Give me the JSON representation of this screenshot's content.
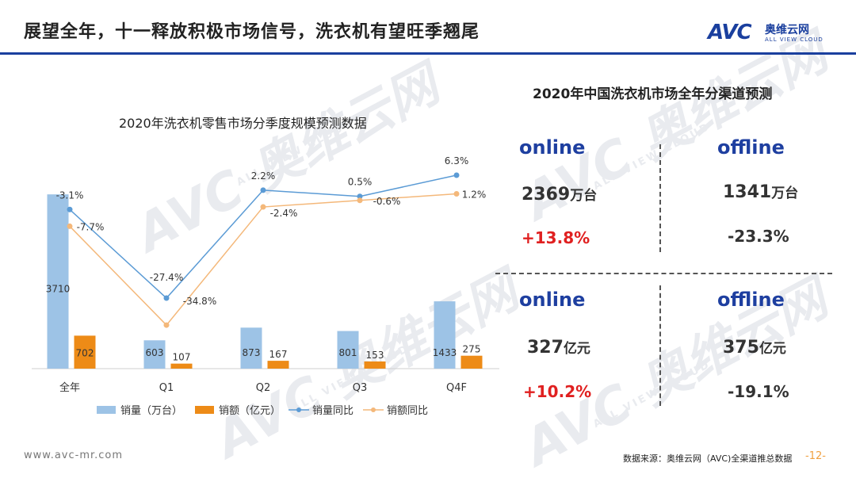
{
  "header": {
    "title": "展望全年，十一释放积极市场信号，洗衣机有望旺季翘尾",
    "logo_text": "AVC",
    "logo_cn": "奥维云网",
    "logo_sub": "ALL VIEW CLOUD"
  },
  "watermark": {
    "main": "AVC 奥维云网",
    "sub": "ALL VIEW CLOUD"
  },
  "chart_data": {
    "type": "bar+line",
    "title": "2020年洗衣机零售市场分季度规模预测数据",
    "categories": [
      "全年",
      "Q1",
      "Q2",
      "Q3",
      "Q4F"
    ],
    "series": [
      {
        "name": "销量（万台）",
        "kind": "bar",
        "color": "#9dc3e6",
        "values": [
          3710,
          603,
          873,
          801,
          1433
        ],
        "labels": [
          "3710",
          "603",
          "873",
          "801",
          "1433"
        ]
      },
      {
        "name": "销额（亿元）",
        "kind": "bar",
        "color": "#ed8b17",
        "values": [
          702,
          107,
          167,
          153,
          275
        ],
        "labels": [
          "702",
          "107",
          "167",
          "153",
          "275"
        ]
      },
      {
        "name": "销量同比",
        "kind": "line",
        "color": "#5b9bd5",
        "values": [
          -3.1,
          -27.4,
          2.2,
          0.5,
          6.3
        ],
        "labels": [
          "-3.1%",
          "-27.4%",
          "2.2%",
          "0.5%",
          "6.3%"
        ]
      },
      {
        "name": "销额同比",
        "kind": "line",
        "color": "#f4b87a",
        "values": [
          -7.7,
          -34.8,
          -2.4,
          -0.6,
          1.2
        ],
        "labels": [
          "-7.7%",
          "-34.8%",
          "-2.4%",
          "-0.6%",
          "1.2%"
        ]
      }
    ],
    "bar_axis_max": 4000,
    "line_axis_range": [
      -40,
      10
    ],
    "legend_position": "bottom"
  },
  "right_panel": {
    "title": "2020年中国洗衣机市场全年分渠道预测",
    "cells": [
      {
        "channel": "online",
        "value": "2369",
        "unit": "万台",
        "change": "+13.8%",
        "sign": "pos"
      },
      {
        "channel": "offline",
        "value": "1341",
        "unit": "万台",
        "change": "-23.3%",
        "sign": "neg"
      },
      {
        "channel": "online",
        "value": "327",
        "unit": "亿元",
        "change": "+10.2%",
        "sign": "pos"
      },
      {
        "channel": "offline",
        "value": "375",
        "unit": "亿元",
        "change": "-19.1%",
        "sign": "neg"
      }
    ]
  },
  "footer": {
    "website": "www.avc-mr.com",
    "source": "数据来源：奥维云网（AVC)全渠道推总数据",
    "page": "-12-"
  }
}
